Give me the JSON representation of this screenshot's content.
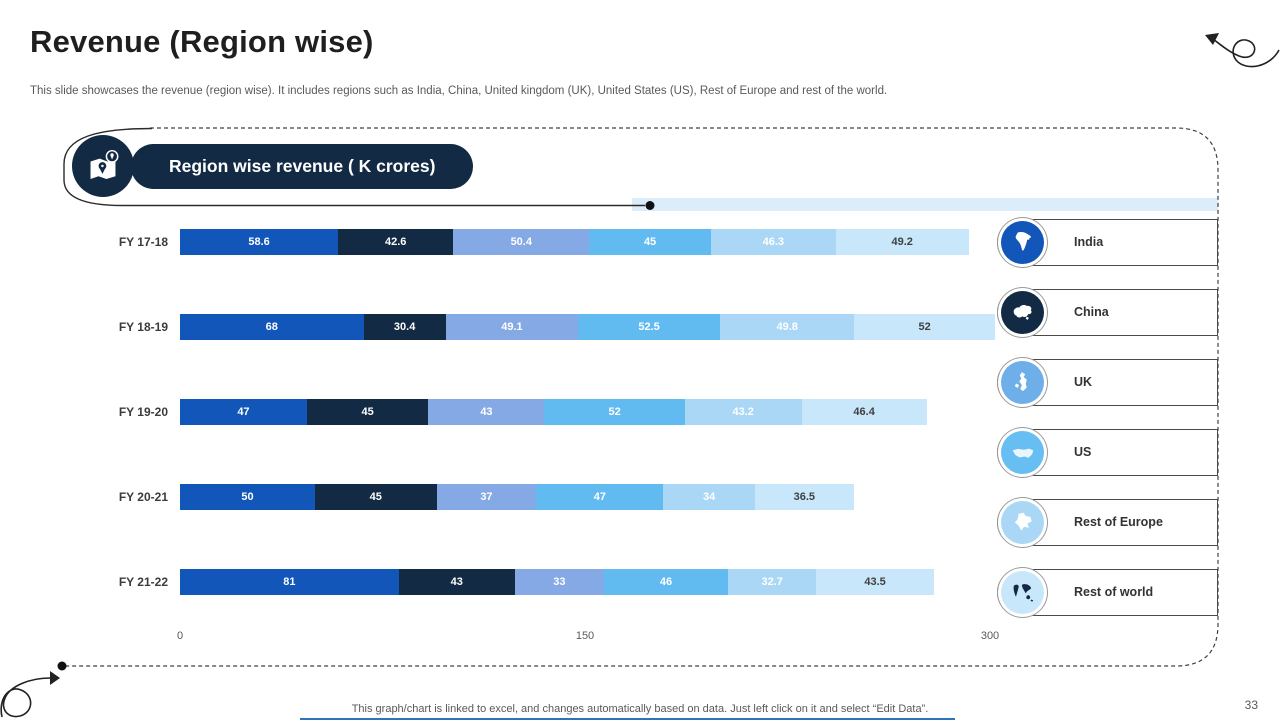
{
  "slide": {
    "title": "Revenue (Region wise)",
    "subtitle": "This slide showcases the revenue (region wise). It includes regions such as India, China, United kingdom (UK), United States (US), Rest of Europe and rest of the world.",
    "footer_note": "This graph/chart is linked to excel, and changes automatically based on data. Just left click on it and select “Edit Data”.",
    "page_number": "33"
  },
  "panel": {
    "header_label": "Region wise revenue ( K crores)",
    "header_icon": "map-location-icon"
  },
  "chart_data": {
    "type": "bar",
    "stacked": true,
    "orientation": "horizontal",
    "title": "Region wise revenue ( K crores)",
    "categories": [
      "FY 17-18",
      "FY 18-19",
      "FY 19-20",
      "FY 20-21",
      "FY 21-22"
    ],
    "series": [
      {
        "name": "India",
        "color": "#1156B8",
        "label_color": "#ffffff",
        "values": [
          58.6,
          68,
          47,
          50,
          81
        ]
      },
      {
        "name": "China",
        "color": "#132A44",
        "label_color": "#ffffff",
        "values": [
          42.6,
          30.4,
          45,
          45,
          43
        ]
      },
      {
        "name": "UK",
        "color": "#84A9E4",
        "label_color": "#ffffff",
        "values": [
          50.4,
          49.1,
          43,
          37,
          33
        ]
      },
      {
        "name": "US",
        "color": "#61BBF1",
        "label_color": "#ffffff",
        "values": [
          45,
          52.5,
          52,
          47,
          46
        ]
      },
      {
        "name": "Rest of Europe",
        "color": "#A9D7F5",
        "label_color": "#ffffff",
        "values": [
          46.3,
          49.8,
          43.2,
          34,
          32.7
        ]
      },
      {
        "name": "Rest of world",
        "color": "#C9E7FB",
        "label_color": "#404040",
        "values": [
          49.2,
          52,
          46.4,
          36.5,
          43.5
        ]
      }
    ],
    "x_axis": {
      "min": 0,
      "max": 300,
      "ticks": [
        "0",
        "150",
        "300"
      ]
    },
    "grid": false,
    "legend_position": "right"
  },
  "legend": {
    "items": [
      {
        "label": "India",
        "icon": "india-map-icon",
        "color": "#1156B8",
        "glyph": "#ffffff"
      },
      {
        "label": "China",
        "icon": "china-map-icon",
        "color": "#132A44",
        "glyph": "#ffffff"
      },
      {
        "label": "UK",
        "icon": "uk-map-icon",
        "color": "#6FAFE9",
        "glyph": "#ffffff"
      },
      {
        "label": "US",
        "icon": "us-map-icon",
        "color": "#66BEF2",
        "glyph": "#eaf5fd"
      },
      {
        "label": "Rest of Europe",
        "icon": "europe-map-icon",
        "color": "#A9D7F5",
        "glyph": "#ffffff"
      },
      {
        "label": "Rest of world",
        "icon": "world-map-icon",
        "color": "#C9E7FB",
        "glyph": "#132A44"
      }
    ]
  }
}
